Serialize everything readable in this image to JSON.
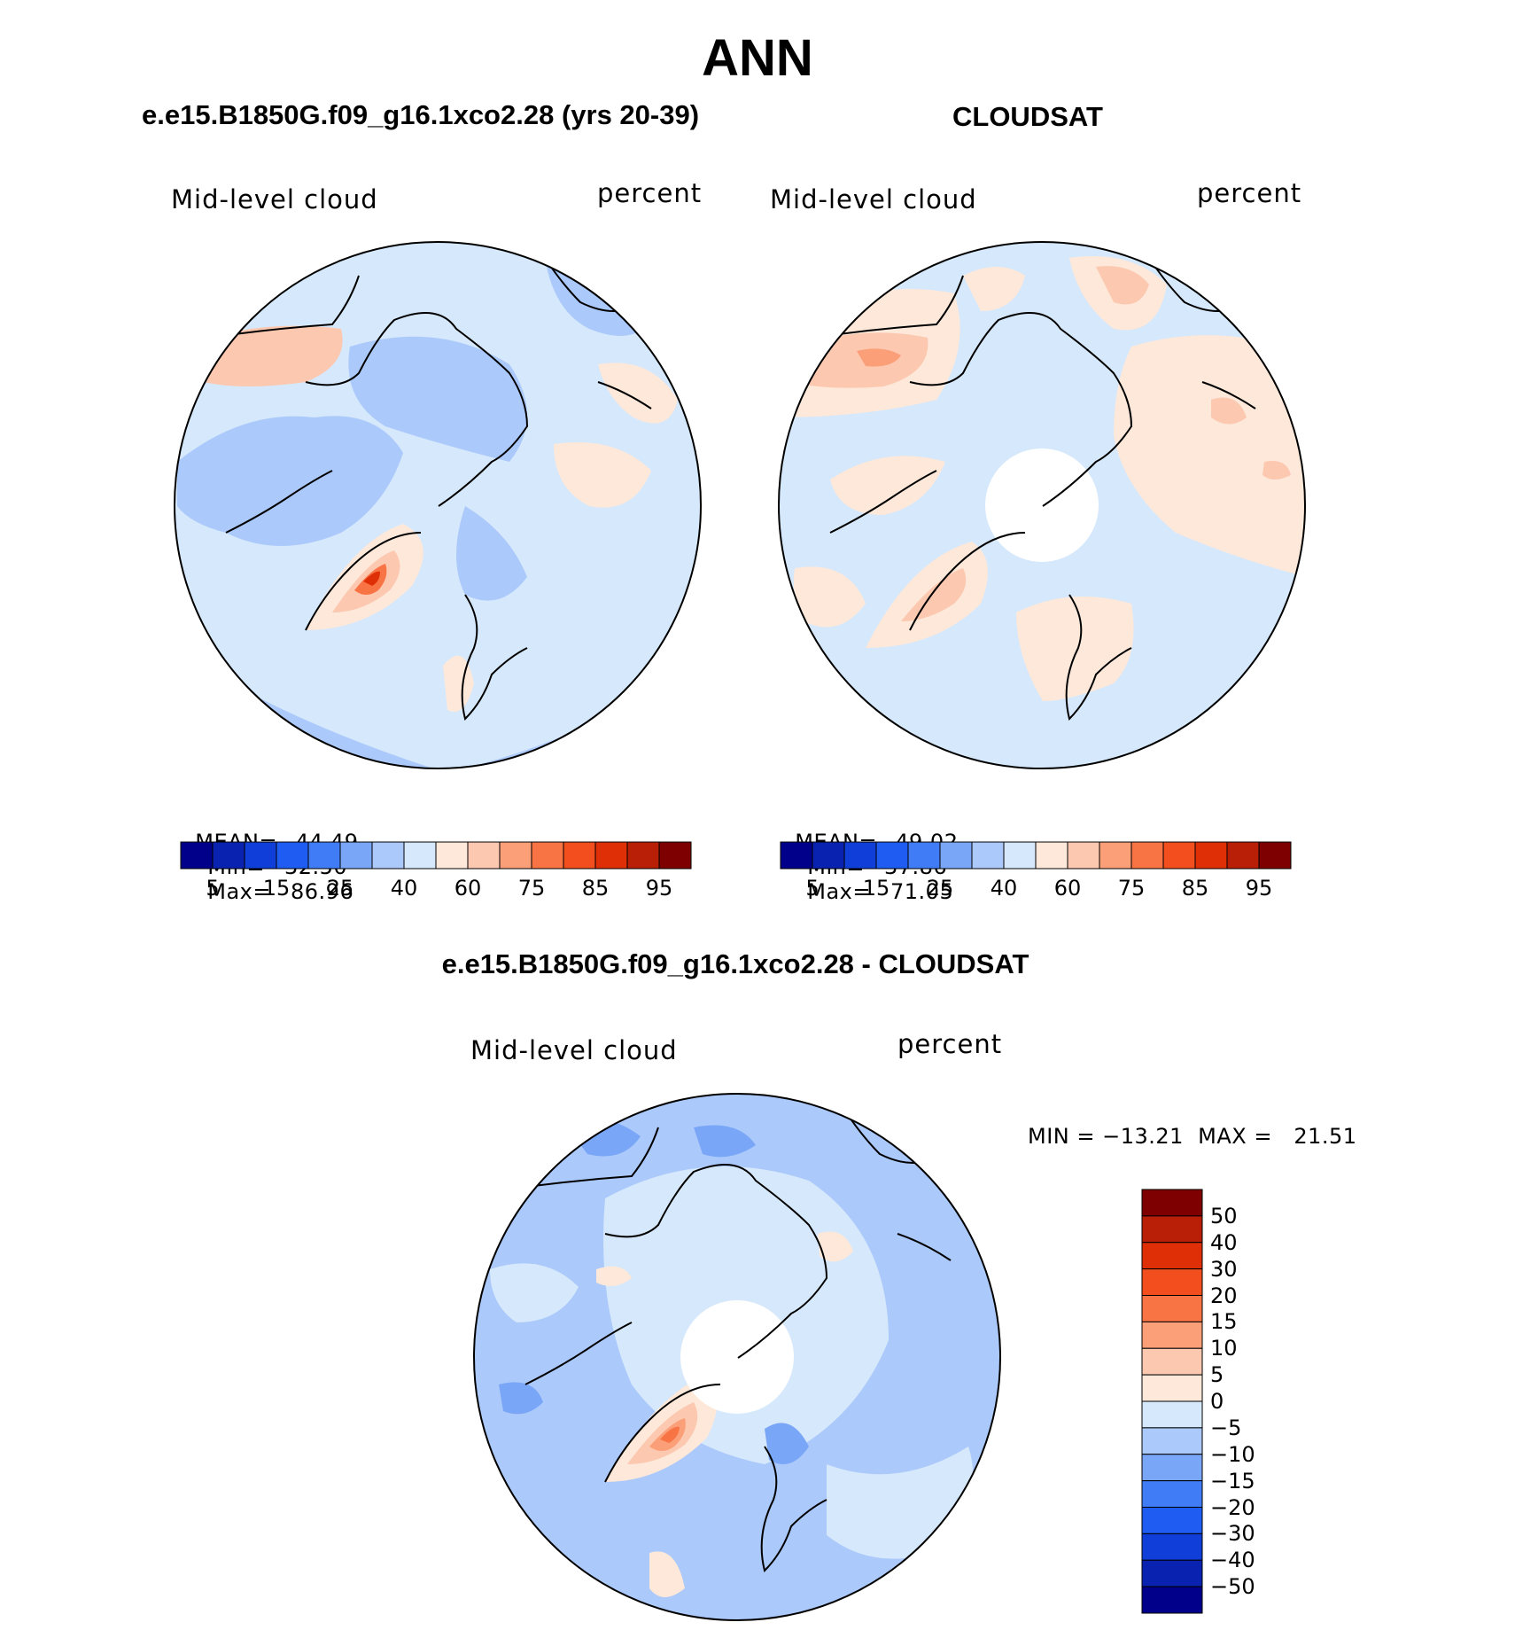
{
  "title": "ANN",
  "panels": [
    {
      "id": "model",
      "title": "e.e15.B1850G.f09_g16.1xco2.28 (yrs 20-39)",
      "left_label": "Mid-level cloud",
      "right_label": "percent",
      "mean_label": "MEAN=",
      "mean": "44.49",
      "min_label": "Min=",
      "min": "32.50",
      "max_label": "Max=",
      "max": "86.96",
      "background_color": "#d6e8fb"
    },
    {
      "id": "cloudsat",
      "title": "CLOUDSAT",
      "left_label": "Mid-level cloud",
      "right_label": "percent",
      "mean_label": "MEAN=",
      "mean": "49.02",
      "min_label": "Min=",
      "min": "37.86",
      "max_label": "Max=",
      "max": "71.05",
      "background_color": "#d6e8fb"
    }
  ],
  "diff_panel": {
    "title": "e.e15.B1850G.f09_g16.1xco2.28 - CLOUDSAT",
    "left_label": "Mid-level cloud",
    "right_label": "percent",
    "minmax_text": "MIN = −13.21  MAX =   21.51",
    "background_color": "#a8c8f8"
  },
  "colorbar_horizontal": {
    "colors": [
      "#00008a",
      "#0a22b0",
      "#0f3fd8",
      "#1e5cf2",
      "#3f7cf5",
      "#7aa6f7",
      "#abc9fa",
      "#d6e8fb",
      "#fde8da",
      "#fcc8b0",
      "#fb9f78",
      "#f87445",
      "#f24e1e",
      "#df2f06",
      "#b91f06",
      "#7e0000"
    ],
    "tick_labels": [
      "5",
      "15",
      "25",
      "40",
      "60",
      "75",
      "85",
      "95"
    ]
  },
  "colorbar_vertical": {
    "colors_top_to_bottom": [
      "#7e0000",
      "#b91f06",
      "#df2f06",
      "#f24e1e",
      "#f87445",
      "#fb9f78",
      "#fcc8b0",
      "#fde8da",
      "#d6e8fb",
      "#abc9fa",
      "#7aa6f7",
      "#3f7cf5",
      "#1e5cf2",
      "#0f3fd8",
      "#0a22b0",
      "#00008a"
    ],
    "tick_labels": [
      "50",
      "40",
      "30",
      "20",
      "15",
      "10",
      "5",
      "0",
      "−5",
      "−10",
      "−15",
      "−20",
      "−30",
      "−40",
      "−50"
    ]
  }
}
